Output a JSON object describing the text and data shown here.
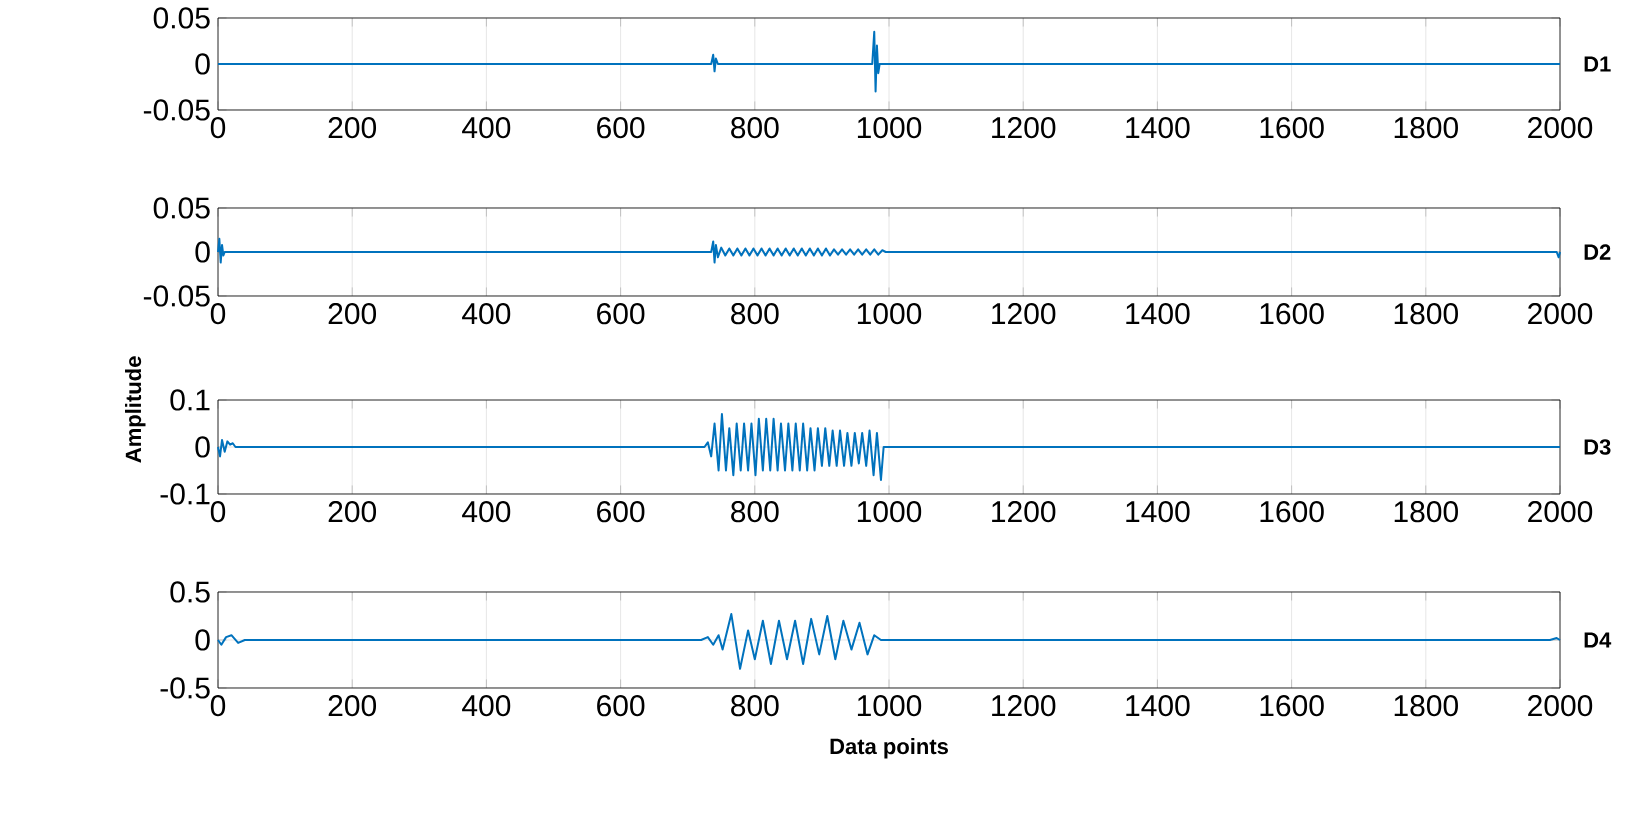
{
  "chart_data": [
    {
      "type": "line",
      "annotations": [
        "D1"
      ],
      "grid": true,
      "xlim": [
        0,
        2000
      ],
      "xticks": [
        0,
        200,
        400,
        600,
        800,
        1000,
        1200,
        1400,
        1600,
        1800,
        2000
      ],
      "ylim": [
        -0.05,
        0.05
      ],
      "yticks": [
        -0.05,
        0,
        0.05
      ],
      "series": [
        {
          "color": "#0072bd",
          "x": [
            0,
            735,
            738,
            740,
            742,
            745,
            975,
            978,
            980,
            982,
            984,
            986,
            2000
          ],
          "values": [
            0,
            0,
            0.01,
            -0.008,
            0.006,
            0,
            0,
            0.035,
            -0.03,
            0.02,
            -0.01,
            0,
            0
          ]
        }
      ]
    },
    {
      "type": "line",
      "annotations": [
        "D2"
      ],
      "grid": true,
      "xlim": [
        0,
        2000
      ],
      "xticks": [
        0,
        200,
        400,
        600,
        800,
        1000,
        1200,
        1400,
        1600,
        1800,
        2000
      ],
      "ylim": [
        -0.05,
        0.05
      ],
      "yticks": [
        -0.05,
        0,
        0.05
      ],
      "series": [
        {
          "color": "#0072bd",
          "x": [
            0,
            2,
            4,
            6,
            8,
            10,
            735,
            738,
            740,
            742,
            745,
            750,
            756,
            762,
            768,
            774,
            780,
            786,
            792,
            798,
            804,
            810,
            816,
            822,
            828,
            834,
            840,
            846,
            852,
            858,
            864,
            870,
            876,
            882,
            888,
            894,
            900,
            906,
            912,
            918,
            924,
            930,
            936,
            942,
            948,
            954,
            960,
            966,
            972,
            978,
            984,
            990,
            995,
            1995,
            1998,
            2000
          ],
          "values": [
            0,
            0.015,
            -0.012,
            0.008,
            -0.004,
            0,
            0,
            0.012,
            -0.012,
            0.008,
            -0.006,
            0.005,
            -0.004,
            0.004,
            -0.004,
            0.004,
            -0.004,
            0.004,
            -0.004,
            0.004,
            -0.004,
            0.004,
            -0.004,
            0.004,
            -0.004,
            0.004,
            -0.004,
            0.004,
            -0.004,
            0.004,
            -0.004,
            0.004,
            -0.004,
            0.004,
            -0.004,
            0.004,
            -0.004,
            0.004,
            -0.004,
            0.003,
            -0.003,
            0.003,
            -0.003,
            0.003,
            -0.003,
            0.003,
            -0.003,
            0.003,
            -0.003,
            0.003,
            -0.003,
            0.002,
            0,
            0,
            -0.006,
            0
          ]
        }
      ]
    },
    {
      "type": "line",
      "annotations": [
        "D3"
      ],
      "ylabel": "Amplitude",
      "grid": true,
      "xlim": [
        0,
        2000
      ],
      "xticks": [
        0,
        200,
        400,
        600,
        800,
        1000,
        1200,
        1400,
        1600,
        1800,
        2000
      ],
      "ylim": [
        -0.1,
        0.1
      ],
      "yticks": [
        -0.1,
        0,
        0.1
      ],
      "series": [
        {
          "color": "#0072bd",
          "x": [
            0,
            3,
            6,
            10,
            14,
            18,
            22,
            26,
            30,
            725,
            730,
            735,
            740,
            746,
            751,
            757,
            762,
            768,
            773,
            779,
            784,
            790,
            795,
            801,
            806,
            812,
            817,
            823,
            828,
            834,
            839,
            845,
            850,
            856,
            861,
            867,
            872,
            878,
            883,
            889,
            894,
            900,
            905,
            911,
            916,
            922,
            927,
            933,
            938,
            944,
            949,
            955,
            960,
            966,
            971,
            977,
            982,
            988,
            992,
            2000
          ],
          "values": [
            0,
            -0.02,
            0.015,
            -0.01,
            0.012,
            0.005,
            0.008,
            0,
            0,
            0,
            0.01,
            -0.02,
            0.05,
            -0.05,
            0.07,
            -0.05,
            0.04,
            -0.06,
            0.05,
            -0.05,
            0.05,
            -0.05,
            0.05,
            -0.06,
            0.06,
            -0.05,
            0.06,
            -0.05,
            0.06,
            -0.05,
            0.05,
            -0.05,
            0.05,
            -0.05,
            0.05,
            -0.05,
            0.05,
            -0.05,
            0.04,
            -0.05,
            0.04,
            -0.04,
            0.04,
            -0.04,
            0.035,
            -0.04,
            0.035,
            -0.04,
            0.03,
            -0.04,
            0.03,
            -0.035,
            0.03,
            -0.04,
            0.035,
            -0.06,
            0.03,
            -0.07,
            0,
            0
          ]
        }
      ]
    },
    {
      "type": "line",
      "annotations": [
        "D4"
      ],
      "xlabel": "Data points",
      "grid": true,
      "xlim": [
        0,
        2000
      ],
      "xticks": [
        0,
        200,
        400,
        600,
        800,
        1000,
        1200,
        1400,
        1600,
        1800,
        2000
      ],
      "ylim": [
        -0.5,
        0.5
      ],
      "yticks": [
        -0.5,
        0,
        0.5
      ],
      "series": [
        {
          "color": "#0072bd",
          "x": [
            0,
            5,
            12,
            20,
            30,
            40,
            720,
            730,
            738,
            746,
            752,
            765,
            778,
            790,
            800,
            812,
            824,
            836,
            848,
            860,
            872,
            884,
            896,
            908,
            920,
            932,
            944,
            956,
            968,
            978,
            988,
            1985,
            1995,
            2000
          ],
          "values": [
            0,
            -0.05,
            0.03,
            0.05,
            -0.03,
            0,
            0,
            0.03,
            -0.05,
            0.05,
            -0.1,
            0.27,
            -0.3,
            0.1,
            -0.2,
            0.2,
            -0.25,
            0.2,
            -0.2,
            0.2,
            -0.25,
            0.22,
            -0.15,
            0.25,
            -0.2,
            0.2,
            -0.1,
            0.18,
            -0.15,
            0.05,
            0,
            0,
            0.02,
            0
          ]
        }
      ]
    }
  ]
}
